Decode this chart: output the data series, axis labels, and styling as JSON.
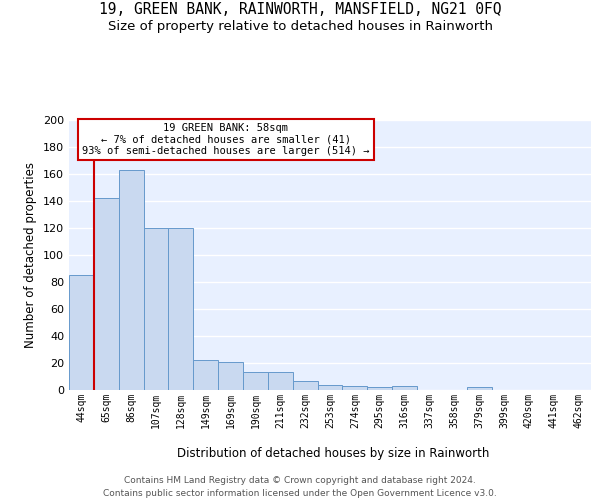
{
  "title1": "19, GREEN BANK, RAINWORTH, MANSFIELD, NG21 0FQ",
  "title2": "Size of property relative to detached houses in Rainworth",
  "xlabel": "Distribution of detached houses by size in Rainworth",
  "ylabel": "Number of detached properties",
  "categories": [
    "44sqm",
    "65sqm",
    "86sqm",
    "107sqm",
    "128sqm",
    "149sqm",
    "169sqm",
    "190sqm",
    "211sqm",
    "232sqm",
    "253sqm",
    "274sqm",
    "295sqm",
    "316sqm",
    "337sqm",
    "358sqm",
    "379sqm",
    "399sqm",
    "420sqm",
    "441sqm",
    "462sqm"
  ],
  "values": [
    85,
    142,
    163,
    120,
    120,
    22,
    21,
    13,
    13,
    7,
    4,
    3,
    2,
    3,
    0,
    0,
    2,
    0,
    0,
    0,
    0
  ],
  "bar_color": "#c9d9f0",
  "bar_edge_color": "#6699cc",
  "highlight_line_color": "#cc0000",
  "red_line_x": 0.5,
  "annotation_text": "19 GREEN BANK: 58sqm\n← 7% of detached houses are smaller (41)\n93% of semi-detached houses are larger (514) →",
  "annotation_box_color": "#ffffff",
  "annotation_box_edge": "#cc0000",
  "ylim": [
    0,
    200
  ],
  "yticks": [
    0,
    20,
    40,
    60,
    80,
    100,
    120,
    140,
    160,
    180,
    200
  ],
  "bg_color": "#e8f0ff",
  "grid_color": "#ffffff",
  "title1_fontsize": 10.5,
  "title2_fontsize": 9.5,
  "footer1": "Contains HM Land Registry data © Crown copyright and database right 2024.",
  "footer2": "Contains public sector information licensed under the Open Government Licence v3.0.",
  "footer_fontsize": 6.5
}
